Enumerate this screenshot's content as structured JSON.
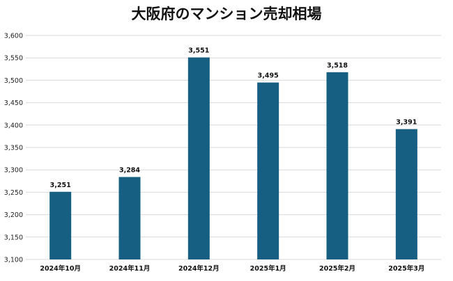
{
  "chart_data": {
    "type": "bar",
    "title": "大阪府のマンション売却相場",
    "categories": [
      "2024年10月",
      "2024年11月",
      "2024年12月",
      "2025年1月",
      "2025年2月",
      "2025年3月"
    ],
    "values": [
      3251,
      3284,
      3551,
      3495,
      3518,
      3391
    ],
    "data_labels": [
      "3,251",
      "3,284",
      "3,551",
      "3,495",
      "3,518",
      "3,391"
    ],
    "ylim": [
      3100,
      3600
    ],
    "yticks": [
      3100,
      3150,
      3200,
      3250,
      3300,
      3350,
      3400,
      3450,
      3500,
      3550,
      3600
    ],
    "ytick_labels": [
      "3,100",
      "3,150",
      "3,200",
      "3,250",
      "3,300",
      "3,350",
      "3,400",
      "3,450",
      "3,500",
      "3,550",
      "3,600"
    ],
    "grid": true,
    "legend": "none",
    "bar_color": "#175f82",
    "grid_color": "#d9d9d9"
  }
}
